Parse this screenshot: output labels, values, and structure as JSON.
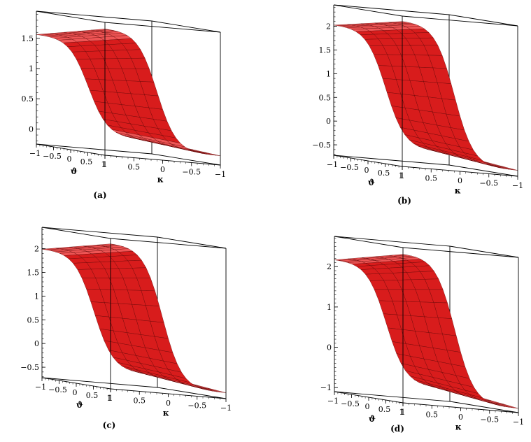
{
  "colors": {
    "surface": "#d81c1c",
    "surface_light": "#ef5555",
    "mesh": "#5a0000",
    "frame": "#000000"
  },
  "chart_data": [
    {
      "type": "surface3d",
      "caption": "(a)",
      "xlabel": "ϑ",
      "ylabel": "κ",
      "x_ticks": [
        "−1",
        "−0.5",
        "0",
        "0.5",
        "1"
      ],
      "y_ticks": [
        "1",
        "0.5",
        "0",
        "−0.5",
        "−1"
      ],
      "z_ticks": [
        "0",
        "0.5",
        "1",
        "1.5"
      ],
      "zlim": [
        -0.25,
        1.95
      ],
      "z_high": 1.85,
      "z_low": -0.1,
      "z_left_edge": 1.05,
      "z_right_edge": 0.1
    },
    {
      "type": "surface3d",
      "caption": "(b)",
      "xlabel": "ϑ",
      "ylabel": "κ",
      "x_ticks": [
        "−1",
        "−0.5",
        "0",
        "0.5",
        "1"
      ],
      "y_ticks": [
        "1",
        "0.5",
        "0",
        "−0.5",
        "−1"
      ],
      "z_ticks": [
        "−0.5",
        "0",
        "0.5",
        "1",
        "1.5",
        "2"
      ],
      "zlim": [
        -0.72,
        2.45
      ],
      "z_high": 2.35,
      "z_low": -0.6,
      "z_left_edge": 1.45,
      "z_right_edge": -0.2
    },
    {
      "type": "surface3d",
      "caption": "(c)",
      "xlabel": "ϑ",
      "ylabel": "κ",
      "x_ticks": [
        "−1",
        "−0.5",
        "0",
        "0.5",
        "1"
      ],
      "y_ticks": [
        "1",
        "0.5",
        "0",
        "−0.5",
        "−1"
      ],
      "z_ticks": [
        "−0.5",
        "0",
        "0.5",
        "1",
        "1.5",
        "2"
      ],
      "zlim": [
        -0.72,
        2.45
      ],
      "z_high": 2.35,
      "z_low": -0.6,
      "z_left_edge": 1.35,
      "z_right_edge": -0.2
    },
    {
      "type": "surface3d",
      "caption": "(d)",
      "xlabel": "ϑ",
      "ylabel": "κ",
      "x_ticks": [
        "−1",
        "−0.5",
        "0",
        "0.5",
        "1"
      ],
      "y_ticks": [
        "1",
        "0.5",
        "0",
        "−0.5",
        "−1"
      ],
      "z_ticks": [
        "−1",
        "0",
        "1",
        "2"
      ],
      "zlim": [
        -1.1,
        2.75
      ],
      "z_high": 2.6,
      "z_low": -1.0,
      "z_left_edge": 1.4,
      "z_right_edge": -0.4
    }
  ]
}
